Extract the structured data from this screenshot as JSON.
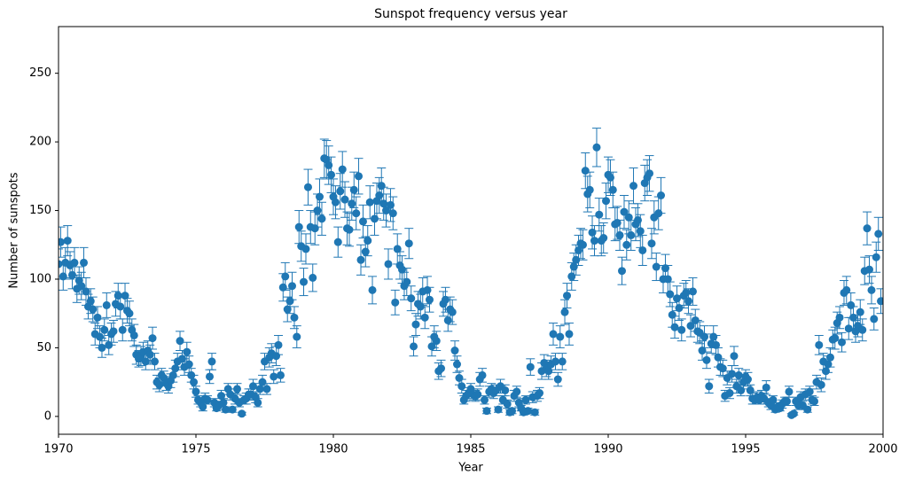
{
  "chart_data": {
    "type": "errorbar",
    "title": "Sunspot frequency versus year",
    "xlabel": "Year",
    "ylabel": "Number of sunspots",
    "color": "#1f77b4",
    "xlim": [
      1970,
      2000
    ],
    "xticks": [
      1970,
      1975,
      1980,
      1985,
      1990,
      1995,
      2000
    ],
    "ylim": [
      -13,
      284
    ],
    "yticks": [
      0,
      50,
      100,
      150,
      200,
      250
    ],
    "x": [
      1970,
      1970.08,
      1970.17,
      1970.25,
      1970.33,
      1970.42,
      1970.5,
      1970.58,
      1970.67,
      1970.75,
      1970.83,
      1970.92,
      1971,
      1971.08,
      1971.17,
      1971.25,
      1971.33,
      1971.42,
      1971.5,
      1971.58,
      1971.67,
      1971.75,
      1971.83,
      1971.92,
      1972,
      1972.08,
      1972.17,
      1972.25,
      1972.33,
      1972.42,
      1972.5,
      1972.58,
      1972.67,
      1972.75,
      1972.83,
      1972.92,
      1973,
      1973.08,
      1973.17,
      1973.25,
      1973.33,
      1973.42,
      1973.5,
      1973.58,
      1973.67,
      1973.75,
      1973.83,
      1973.92,
      1974,
      1974.08,
      1974.17,
      1974.25,
      1974.33,
      1974.42,
      1974.5,
      1974.58,
      1974.67,
      1974.75,
      1974.83,
      1974.92,
      1975,
      1975.08,
      1975.17,
      1975.25,
      1975.33,
      1975.42,
      1975.5,
      1975.58,
      1975.67,
      1975.75,
      1975.83,
      1975.92,
      1976,
      1976.08,
      1976.17,
      1976.25,
      1976.33,
      1976.42,
      1976.5,
      1976.58,
      1976.67,
      1976.75,
      1976.83,
      1976.92,
      1977,
      1977.08,
      1977.17,
      1977.25,
      1977.33,
      1977.42,
      1977.5,
      1977.58,
      1977.67,
      1977.75,
      1977.83,
      1977.92,
      1978,
      1978.08,
      1978.17,
      1978.25,
      1978.33,
      1978.42,
      1978.5,
      1978.58,
      1978.67,
      1978.75,
      1978.83,
      1978.92,
      1979,
      1979.08,
      1979.17,
      1979.25,
      1979.33,
      1979.42,
      1979.5,
      1979.58,
      1979.67,
      1979.75,
      1979.83,
      1979.92,
      1980,
      1980.08,
      1980.17,
      1980.25,
      1980.33,
      1980.42,
      1980.5,
      1980.58,
      1980.67,
      1980.75,
      1980.83,
      1980.92,
      1981,
      1981.08,
      1981.17,
      1981.25,
      1981.33,
      1981.42,
      1981.5,
      1981.58,
      1981.67,
      1981.75,
      1981.83,
      1981.92,
      1982,
      1982.08,
      1982.17,
      1982.25,
      1982.33,
      1982.42,
      1982.5,
      1982.58,
      1982.67,
      1982.75,
      1982.83,
      1982.92,
      1983,
      1983.08,
      1983.17,
      1983.25,
      1983.33,
      1983.42,
      1983.5,
      1983.58,
      1983.67,
      1983.75,
      1983.83,
      1983.92,
      1984,
      1984.08,
      1984.17,
      1984.25,
      1984.33,
      1984.42,
      1984.5,
      1984.58,
      1984.67,
      1984.75,
      1984.83,
      1984.92,
      1985,
      1985.08,
      1985.17,
      1985.25,
      1985.33,
      1985.42,
      1985.5,
      1985.58,
      1985.67,
      1985.75,
      1985.83,
      1985.92,
      1986,
      1986.08,
      1986.17,
      1986.25,
      1986.33,
      1986.42,
      1986.5,
      1986.58,
      1986.67,
      1986.75,
      1986.83,
      1986.92,
      1987,
      1987.08,
      1987.17,
      1987.25,
      1987.33,
      1987.42,
      1987.5,
      1987.58,
      1987.67,
      1987.75,
      1987.83,
      1987.92,
      1988,
      1988.08,
      1988.17,
      1988.25,
      1988.33,
      1988.42,
      1988.5,
      1988.58,
      1988.67,
      1988.75,
      1988.83,
      1988.92,
      1989,
      1989.08,
      1989.17,
      1989.25,
      1989.33,
      1989.42,
      1989.5,
      1989.58,
      1989.67,
      1989.75,
      1989.83,
      1989.92,
      1990,
      1990.08,
      1990.17,
      1990.25,
      1990.33,
      1990.42,
      1990.5,
      1990.58,
      1990.67,
      1990.75,
      1990.83,
      1990.92,
      1991,
      1991.08,
      1991.17,
      1991.25,
      1991.33,
      1991.42,
      1991.5,
      1991.58,
      1991.67,
      1991.75,
      1991.83,
      1991.92,
      1992,
      1992.08,
      1992.17,
      1992.25,
      1992.33,
      1992.42,
      1992.5,
      1992.58,
      1992.67,
      1992.75,
      1992.83,
      1992.92,
      1993,
      1993.08,
      1993.17,
      1993.25,
      1993.33,
      1993.42,
      1993.5,
      1993.58,
      1993.67,
      1993.75,
      1993.83,
      1993.92,
      1994,
      1994.08,
      1994.17,
      1994.25,
      1994.33,
      1994.42,
      1994.5,
      1994.58,
      1994.67,
      1994.75,
      1994.83,
      1994.92,
      1995,
      1995.08,
      1995.17,
      1995.25,
      1995.33,
      1995.42,
      1995.5,
      1995.58,
      1995.67,
      1995.75,
      1995.83,
      1995.92,
      1996,
      1996.08,
      1996.17,
      1996.25,
      1996.33,
      1996.42,
      1996.5,
      1996.58,
      1996.67,
      1996.75,
      1996.83,
      1996.92,
      1997,
      1997.08,
      1997.17,
      1997.25,
      1997.33,
      1997.42,
      1997.5,
      1997.58,
      1997.67,
      1997.75,
      1997.83,
      1997.92,
      1998,
      1998.08,
      1998.17,
      1998.25,
      1998.33,
      1998.42,
      1998.5,
      1998.58,
      1998.67,
      1998.75,
      1998.83,
      1998.92,
      1999,
      1999.08,
      1999.17,
      1999.25,
      1999.33,
      1999.42,
      1999.5,
      1999.58,
      1999.67,
      1999.75,
      1999.83,
      1999.92
    ],
    "values": [
      111,
      127,
      102,
      112,
      128,
      110,
      103,
      112,
      93,
      99,
      95,
      112,
      91,
      80,
      84,
      78,
      60,
      72,
      58,
      50,
      63,
      81,
      52,
      60,
      62,
      82,
      88,
      80,
      63,
      88,
      77,
      75,
      63,
      59,
      45,
      42,
      44,
      47,
      40,
      48,
      45,
      57,
      40,
      25,
      23,
      30,
      28,
      24,
      22,
      26,
      30,
      35,
      40,
      55,
      42,
      36,
      47,
      38,
      30,
      25,
      18,
      12,
      10,
      7,
      13,
      12,
      29,
      40,
      10,
      6,
      8,
      15,
      10,
      5,
      20,
      16,
      5,
      13,
      20,
      10,
      2,
      12,
      13,
      16,
      16,
      22,
      14,
      10,
      20,
      25,
      40,
      20,
      43,
      46,
      29,
      44,
      52,
      30,
      94,
      102,
      78,
      84,
      95,
      72,
      58,
      138,
      124,
      98,
      122,
      167,
      138,
      101,
      137,
      150,
      160,
      144,
      188,
      187,
      183,
      176,
      160,
      156,
      127,
      164,
      180,
      158,
      137,
      136,
      155,
      165,
      148,
      175,
      114,
      142,
      120,
      128,
      156,
      92,
      144,
      157,
      161,
      168,
      155,
      150,
      111,
      154,
      148,
      83,
      122,
      110,
      107,
      95,
      98,
      126,
      86,
      51,
      67,
      82,
      80,
      91,
      72,
      92,
      85,
      51,
      58,
      55,
      33,
      35,
      82,
      85,
      70,
      78,
      76,
      48,
      38,
      28,
      22,
      12,
      15,
      17,
      20,
      16,
      15,
      16,
      27,
      30,
      12,
      4,
      18,
      20,
      17,
      19,
      5,
      22,
      12,
      19,
      9,
      3,
      4,
      15,
      18,
      10,
      6,
      3,
      12,
      4,
      36,
      14,
      3,
      15,
      17,
      33,
      39,
      35,
      33,
      38,
      60,
      40,
      27,
      58,
      40,
      76,
      88,
      60,
      102,
      109,
      114,
      121,
      126,
      125,
      179,
      162,
      165,
      134,
      128,
      196,
      147,
      128,
      130,
      157,
      176,
      174,
      165,
      140,
      141,
      132,
      106,
      149,
      125,
      145,
      132,
      168,
      140,
      143,
      135,
      121,
      170,
      174,
      177,
      126,
      145,
      109,
      148,
      161,
      100,
      108,
      100,
      89,
      74,
      65,
      86,
      79,
      63,
      88,
      90,
      84,
      66,
      91,
      70,
      62,
      61,
      48,
      58,
      41,
      22,
      53,
      58,
      52,
      43,
      36,
      35,
      15,
      28,
      17,
      31,
      44,
      22,
      30,
      19,
      25,
      29,
      27,
      19,
      13,
      12,
      14,
      12,
      15,
      13,
      21,
      10,
      8,
      12,
      5,
      7,
      6,
      9,
      11,
      11,
      18,
      1,
      2,
      11,
      8,
      14,
      8,
      16,
      5,
      18,
      12,
      11,
      25,
      52,
      23,
      40,
      33,
      38,
      43,
      56,
      57,
      68,
      72,
      54,
      90,
      92,
      64,
      81,
      72,
      62,
      66,
      76,
      63,
      106,
      137,
      107,
      92,
      71,
      116,
      133,
      84
    ],
    "errors": [
      11,
      11,
      10,
      11,
      11,
      10,
      10,
      11,
      10,
      10,
      10,
      11,
      10,
      9,
      9,
      9,
      8,
      8,
      8,
      7,
      8,
      9,
      7,
      8,
      8,
      9,
      9,
      9,
      8,
      9,
      9,
      9,
      8,
      8,
      7,
      6,
      7,
      7,
      6,
      7,
      7,
      8,
      6,
      5,
      5,
      5,
      5,
      5,
      5,
      5,
      5,
      6,
      6,
      7,
      6,
      6,
      7,
      6,
      5,
      5,
      4,
      3,
      3,
      3,
      4,
      3,
      5,
      6,
      3,
      2,
      3,
      4,
      3,
      2,
      4,
      4,
      2,
      4,
      4,
      3,
      1,
      3,
      4,
      4,
      4,
      5,
      4,
      3,
      4,
      5,
      6,
      4,
      7,
      7,
      5,
      7,
      7,
      5,
      10,
      10,
      9,
      9,
      10,
      8,
      8,
      12,
      11,
      10,
      11,
      13,
      12,
      10,
      12,
      12,
      13,
      12,
      14,
      14,
      14,
      13,
      13,
      12,
      11,
      13,
      13,
      13,
      12,
      12,
      12,
      13,
      12,
      13,
      11,
      12,
      11,
      11,
      12,
      10,
      12,
      13,
      13,
      13,
      12,
      12,
      11,
      12,
      12,
      9,
      11,
      10,
      10,
      10,
      10,
      11,
      9,
      7,
      8,
      9,
      9,
      10,
      8,
      10,
      9,
      7,
      8,
      7,
      6,
      6,
      9,
      9,
      8,
      9,
      9,
      7,
      6,
      5,
      5,
      3,
      4,
      4,
      4,
      4,
      4,
      4,
      5,
      5,
      3,
      2,
      4,
      4,
      4,
      4,
      2,
      5,
      3,
      4,
      3,
      2,
      2,
      4,
      4,
      3,
      2,
      2,
      3,
      2,
      6,
      4,
      2,
      4,
      4,
      6,
      6,
      6,
      6,
      6,
      8,
      6,
      5,
      8,
      6,
      9,
      9,
      8,
      10,
      10,
      11,
      11,
      11,
      11,
      13,
      13,
      13,
      12,
      11,
      14,
      12,
      11,
      11,
      13,
      13,
      13,
      13,
      12,
      12,
      11,
      10,
      12,
      11,
      12,
      11,
      13,
      12,
      12,
      12,
      11,
      13,
      13,
      13,
      11,
      12,
      10,
      12,
      13,
      10,
      10,
      10,
      9,
      9,
      8,
      9,
      9,
      8,
      9,
      9,
      9,
      8,
      10,
      8,
      8,
      8,
      7,
      8,
      6,
      5,
      7,
      8,
      7,
      7,
      6,
      6,
      4,
      5,
      4,
      6,
      7,
      5,
      5,
      4,
      5,
      5,
      5,
      4,
      4,
      3,
      4,
      3,
      4,
      4,
      5,
      3,
      3,
      3,
      2,
      3,
      2,
      3,
      3,
      3,
      4,
      1,
      1,
      3,
      3,
      4,
      3,
      4,
      2,
      4,
      3,
      3,
      5,
      7,
      5,
      6,
      6,
      6,
      7,
      7,
      8,
      8,
      8,
      7,
      9,
      10,
      8,
      9,
      8,
      8,
      8,
      9,
      8,
      10,
      12,
      10,
      10,
      8,
      11,
      12,
      9
    ]
  }
}
